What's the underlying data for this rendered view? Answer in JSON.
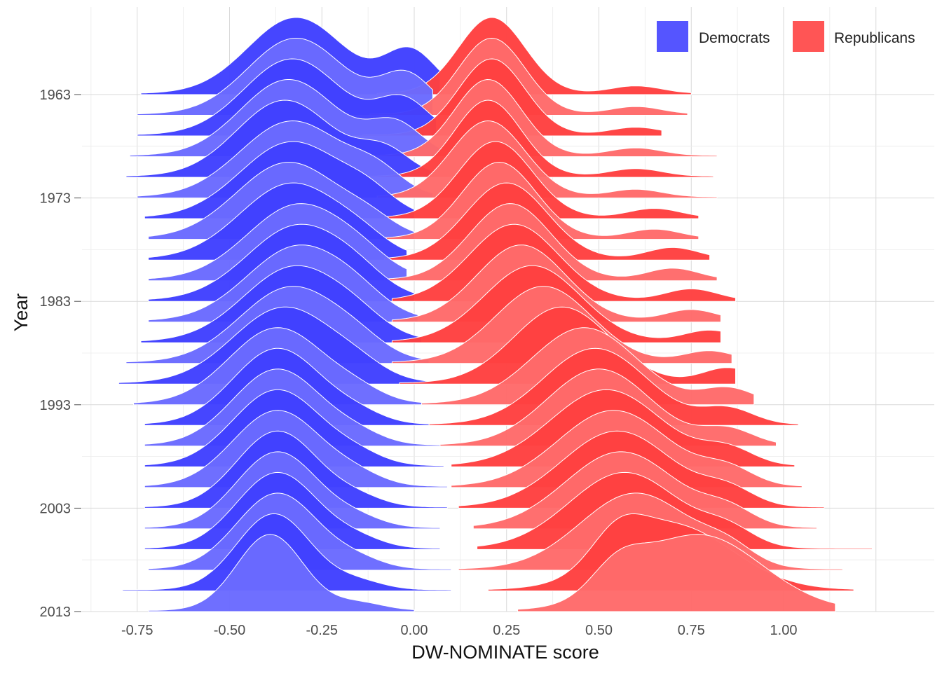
{
  "chart_data": {
    "type": "ridgeline",
    "xlabel": "DW-NOMINATE score",
    "ylabel": "Year",
    "x_ticks": [
      -0.75,
      -0.5,
      -0.25,
      0.0,
      0.25,
      0.5,
      0.75,
      1.0
    ],
    "x_tick_labels": [
      "-0.75",
      "-0.50",
      "-0.25",
      "0.00",
      "0.25",
      "0.50",
      "0.75",
      "1.00"
    ],
    "xlim": [
      -0.88,
      1.26
    ],
    "y_tick_labels": [
      "1963",
      "1973",
      "1983",
      "1993",
      "2003",
      "2013"
    ],
    "y_ticks": [
      1963,
      1973,
      1983,
      1993,
      2003,
      2013
    ],
    "years": [
      1963,
      1965,
      1967,
      1969,
      1971,
      1973,
      1975,
      1977,
      1979,
      1981,
      1983,
      1985,
      1987,
      1989,
      1991,
      1993,
      1995,
      1997,
      1999,
      2001,
      2003,
      2005,
      2007,
      2009,
      2011,
      2013
    ],
    "grid": true,
    "legend_position": "top-right",
    "series": [
      {
        "name": "Democrats",
        "color": "#4040ff",
        "peak": [
          -0.32,
          -0.32,
          -0.33,
          -0.34,
          -0.35,
          -0.33,
          -0.33,
          -0.34,
          -0.33,
          -0.31,
          -0.31,
          -0.31,
          -0.32,
          -0.33,
          -0.35,
          -0.37,
          -0.37,
          -0.37,
          -0.37,
          -0.37,
          -0.37,
          -0.37,
          -0.37,
          -0.37,
          -0.38,
          -0.39
        ],
        "lo": [
          -0.74,
          -0.75,
          -0.75,
          -0.77,
          -0.78,
          -0.75,
          -0.73,
          -0.72,
          -0.72,
          -0.72,
          -0.72,
          -0.72,
          -0.74,
          -0.78,
          -0.8,
          -0.76,
          -0.73,
          -0.73,
          -0.73,
          -0.73,
          -0.73,
          -0.73,
          -0.73,
          -0.72,
          -0.79,
          -0.72
        ],
        "hi": [
          0.07,
          0.05,
          0.06,
          0.07,
          0.05,
          0.05,
          0.0,
          0.0,
          -0.02,
          -0.02,
          0.0,
          0.01,
          0.02,
          0.04,
          0.08,
          0.11,
          0.09,
          0.09,
          0.08,
          0.09,
          0.09,
          0.07,
          0.07,
          0.1,
          0.1,
          0.0
        ],
        "sd": [
          0.13,
          0.13,
          0.13,
          0.13,
          0.13,
          0.14,
          0.14,
          0.14,
          0.14,
          0.14,
          0.14,
          0.14,
          0.14,
          0.14,
          0.14,
          0.13,
          0.12,
          0.12,
          0.12,
          0.12,
          0.11,
          0.11,
          0.11,
          0.11,
          0.1,
          0.09
        ],
        "bump_x": [
          -0.01,
          -0.02,
          -0.03,
          -0.05,
          -0.08,
          -0.1,
          -0.12,
          -0.12,
          -0.14,
          -0.14,
          -0.15,
          -0.15,
          -0.15,
          -0.15,
          -0.15,
          -0.15,
          -0.15,
          -0.15,
          -0.15,
          -0.15,
          -0.15,
          -0.15,
          -0.15,
          -0.15,
          -0.15,
          -0.15
        ],
        "bump_h": [
          0.55,
          0.5,
          0.45,
          0.4,
          0.32,
          0.25,
          0.2,
          0.15,
          0.12,
          0.1,
          0.1,
          0.1,
          0.1,
          0.1,
          0.1,
          0.1,
          0.1,
          0.1,
          0.1,
          0.1,
          0.1,
          0.1,
          0.1,
          0.1,
          0.1,
          0.1
        ]
      },
      {
        "name": "Republicans",
        "color": "#ff4040",
        "peak": [
          0.21,
          0.21,
          0.21,
          0.2,
          0.2,
          0.2,
          0.22,
          0.23,
          0.25,
          0.26,
          0.27,
          0.29,
          0.32,
          0.35,
          0.4,
          0.46,
          0.49,
          0.5,
          0.52,
          0.54,
          0.55,
          0.56,
          0.57,
          0.6,
          0.7,
          0.77
        ],
        "lo": [
          -0.1,
          -0.12,
          -0.14,
          -0.15,
          -0.14,
          -0.1,
          -0.08,
          -0.08,
          -0.08,
          -0.08,
          -0.06,
          -0.06,
          -0.06,
          -0.06,
          -0.04,
          0.02,
          0.04,
          0.07,
          0.1,
          0.1,
          0.12,
          0.16,
          0.17,
          0.12,
          0.2,
          0.28
        ],
        "hi": [
          0.75,
          0.74,
          0.67,
          0.82,
          0.81,
          0.82,
          0.77,
          0.77,
          0.8,
          0.82,
          0.87,
          0.83,
          0.83,
          0.86,
          0.87,
          0.92,
          1.04,
          0.98,
          1.03,
          1.05,
          1.11,
          1.09,
          1.24,
          1.16,
          1.19,
          1.14
        ],
        "sd": [
          0.09,
          0.09,
          0.09,
          0.09,
          0.09,
          0.1,
          0.1,
          0.1,
          0.11,
          0.11,
          0.12,
          0.12,
          0.13,
          0.13,
          0.13,
          0.14,
          0.14,
          0.14,
          0.15,
          0.15,
          0.15,
          0.15,
          0.15,
          0.15,
          0.16,
          0.17
        ],
        "bump_x": [
          0.6,
          0.6,
          0.6,
          0.6,
          0.6,
          0.6,
          0.65,
          0.65,
          0.7,
          0.7,
          0.75,
          0.75,
          0.8,
          0.8,
          0.85,
          0.85,
          0.85,
          0.85,
          0.85,
          0.85,
          0.85,
          0.85,
          0.85,
          0.85,
          0.55,
          0.55
        ],
        "bump_h": [
          0.1,
          0.1,
          0.1,
          0.1,
          0.1,
          0.1,
          0.12,
          0.12,
          0.15,
          0.15,
          0.15,
          0.15,
          0.15,
          0.15,
          0.2,
          0.2,
          0.2,
          0.2,
          0.2,
          0.2,
          0.2,
          0.2,
          0.2,
          0.2,
          0.45,
          0.35
        ]
      }
    ]
  }
}
